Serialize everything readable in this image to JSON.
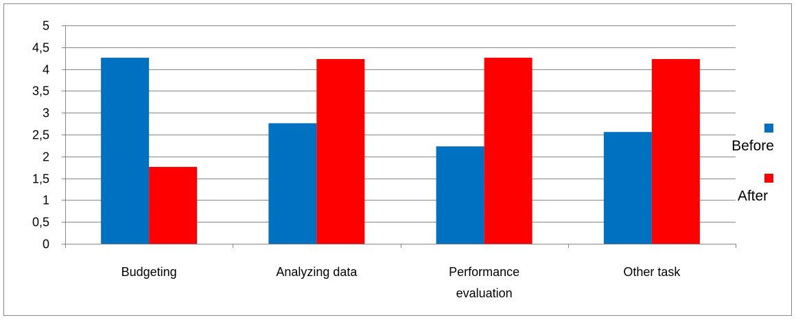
{
  "chart_data": {
    "type": "bar",
    "title": "",
    "xlabel": "",
    "ylabel": "",
    "categories": [
      [
        "Budgeting"
      ],
      [
        "Analyzing data"
      ],
      [
        "Performance",
        "evaluation"
      ],
      [
        "Other task"
      ]
    ],
    "series": [
      {
        "name": "Before",
        "color": "#0070C0",
        "values": [
          4.26,
          2.76,
          2.23,
          2.56
        ]
      },
      {
        "name": "After",
        "color": "#FF0000",
        "values": [
          1.76,
          4.23,
          4.26,
          4.23
        ]
      }
    ],
    "ylim": [
      0,
      5
    ],
    "y_ticks": [
      "0",
      "0,5",
      "1",
      "1,5",
      "2",
      "2,5",
      "3",
      "3,5",
      "4",
      "4,5",
      "5"
    ],
    "grid": true,
    "legend_position": "right"
  }
}
